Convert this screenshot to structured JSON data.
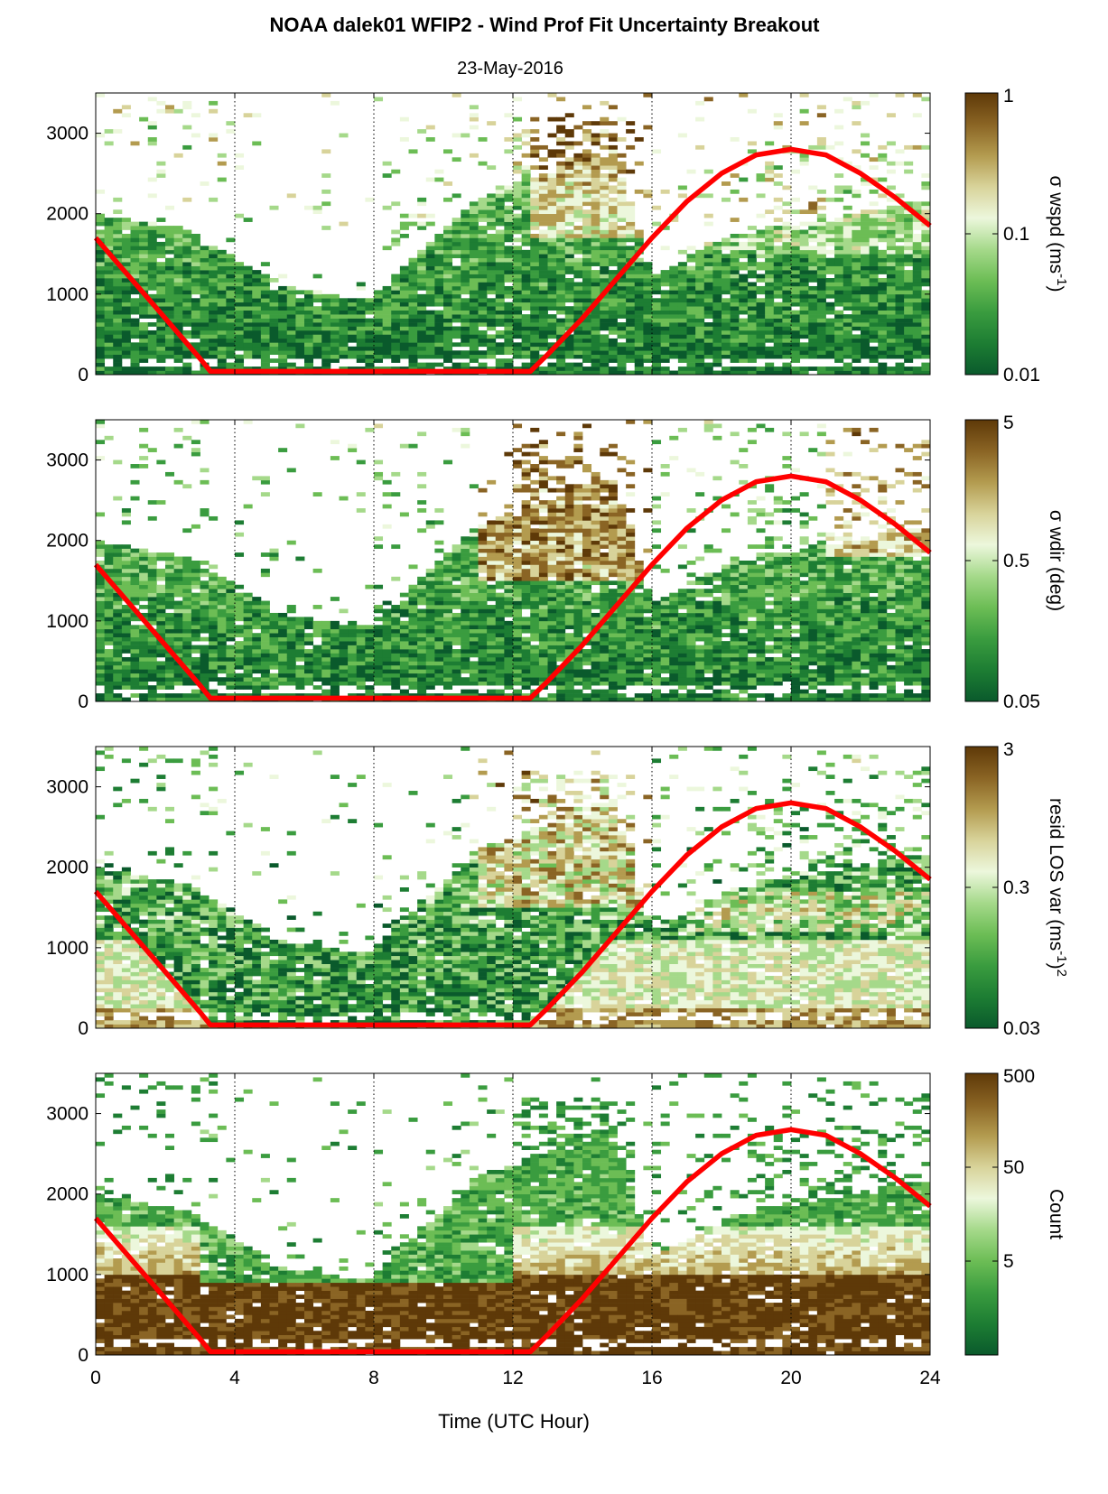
{
  "figure": {
    "title": "NOAA dalek01 WFIP2 - Wind Prof Fit Uncertainty Breakout",
    "subtitle": "23-May-2016",
    "xlabel": "Time (UTC Hour)"
  },
  "colors": {
    "cmap": [
      "#0a5a2c",
      "#1d7d33",
      "#3a9c3f",
      "#6cbd55",
      "#a5d98a",
      "#ecf7dc",
      "#d8d39a",
      "#b39b4f",
      "#8a6424",
      "#5e3908"
    ],
    "line": "#ff0000",
    "axis": "#000000"
  },
  "chart_data": [
    {
      "type": "heatmap",
      "title": "",
      "colorbar_label": "σ wspd (ms",
      "colorbar_sup": "-1",
      "colorbar_tail": ")",
      "scale": "log",
      "clim": [
        0.01,
        1
      ],
      "cticks": [
        {
          "v": 1,
          "label": "1"
        },
        {
          "v": 0.1,
          "label": "0.1"
        },
        {
          "v": 0.01,
          "label": "0.01"
        }
      ],
      "xlim": [
        0,
        24
      ],
      "ylim": [
        0,
        3500
      ],
      "xticks": [
        "0",
        "4",
        "8",
        "12",
        "16",
        "20",
        "24"
      ],
      "yticks": [
        {
          "v": 0,
          "label": "0"
        },
        {
          "v": 1000,
          "label": "1000"
        },
        {
          "v": 2000,
          "label": "2000"
        },
        {
          "v": 3000,
          "label": "3000"
        }
      ],
      "x_tick_labels_shown": false,
      "grid": "dotted vertical at 4, 8, 12, 16, 20",
      "field_profile": "low"
    },
    {
      "type": "heatmap",
      "title": "",
      "colorbar_label": "σ wdir (deg)",
      "colorbar_sup": "",
      "colorbar_tail": "",
      "scale": "log",
      "clim": [
        0.05,
        5
      ],
      "cticks": [
        {
          "v": 5,
          "label": "5"
        },
        {
          "v": 0.5,
          "label": "0.5"
        },
        {
          "v": 0.05,
          "label": "0.05"
        }
      ],
      "xlim": [
        0,
        24
      ],
      "ylim": [
        0,
        3500
      ],
      "xticks": [
        "0",
        "4",
        "8",
        "12",
        "16",
        "20",
        "24"
      ],
      "yticks": [
        {
          "v": 0,
          "label": "0"
        },
        {
          "v": 1000,
          "label": "1000"
        },
        {
          "v": 2000,
          "label": "2000"
        },
        {
          "v": 3000,
          "label": "3000"
        }
      ],
      "x_tick_labels_shown": false,
      "grid": "dotted vertical at 4, 8, 12, 16, 20",
      "field_profile": "wdir"
    },
    {
      "type": "heatmap",
      "title": "",
      "colorbar_label": "resid LOS var (ms",
      "colorbar_sup": "-1",
      "colorbar_tail": ")",
      "colorbar_sup2": "2",
      "scale": "log",
      "clim": [
        0.03,
        3
      ],
      "cticks": [
        {
          "v": 3,
          "label": "3"
        },
        {
          "v": 0.3,
          "label": "0.3"
        },
        {
          "v": 0.03,
          "label": "0.03"
        }
      ],
      "xlim": [
        0,
        24
      ],
      "ylim": [
        0,
        3500
      ],
      "xticks": [
        "0",
        "4",
        "8",
        "12",
        "16",
        "20",
        "24"
      ],
      "yticks": [
        {
          "v": 0,
          "label": "0"
        },
        {
          "v": 1000,
          "label": "1000"
        },
        {
          "v": 2000,
          "label": "2000"
        },
        {
          "v": 3000,
          "label": "3000"
        }
      ],
      "x_tick_labels_shown": false,
      "grid": "dotted vertical at 4, 8, 12, 16, 20",
      "field_profile": "resid"
    },
    {
      "type": "heatmap",
      "title": "",
      "colorbar_label": "Count",
      "colorbar_sup": "",
      "colorbar_tail": "",
      "scale": "log",
      "clim": [
        0.5,
        500
      ],
      "cticks": [
        {
          "v": 500,
          "label": "500"
        },
        {
          "v": 50,
          "label": "50"
        },
        {
          "v": 5,
          "label": "5"
        }
      ],
      "xlim": [
        0,
        24
      ],
      "ylim": [
        0,
        3500
      ],
      "xticks": [
        "0",
        "4",
        "8",
        "12",
        "16",
        "20",
        "24"
      ],
      "yticks": [
        {
          "v": 0,
          "label": "0"
        },
        {
          "v": 1000,
          "label": "1000"
        },
        {
          "v": 2000,
          "label": "2000"
        },
        {
          "v": 3000,
          "label": "3000"
        }
      ],
      "x_tick_labels_shown": true,
      "grid": "dotted vertical at 4, 8, 12, 16, 20",
      "field_profile": "count"
    }
  ],
  "overlay_line": {
    "description": "red boundary-layer height curve (same in all panels)",
    "x": [
      0,
      1,
      2,
      3,
      3.3,
      4,
      6,
      8,
      10,
      12,
      12.5,
      13,
      14,
      15,
      16,
      17,
      18,
      19,
      20,
      21,
      22,
      23,
      24
    ],
    "y": [
      1700,
      1200,
      700,
      200,
      40,
      40,
      40,
      40,
      40,
      40,
      40,
      250,
      700,
      1200,
      1700,
      2150,
      2500,
      2730,
      2800,
      2730,
      2500,
      2200,
      1850
    ]
  }
}
